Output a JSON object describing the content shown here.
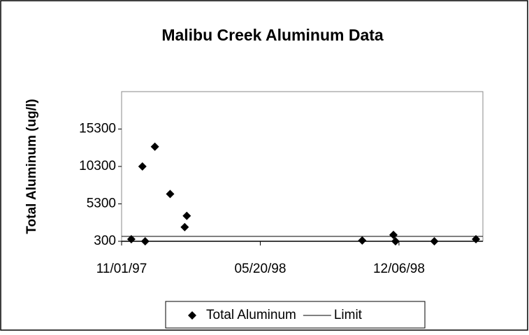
{
  "chart_data": {
    "type": "scatter",
    "title": "Malibu Creek Aluminum Data",
    "y_label": "Total Aluminum (ug/l)",
    "xlim": [
      "11/01/97",
      "04/06/99"
    ],
    "xticks": [
      "11/01/97",
      "05/20/98",
      "12/06/98"
    ],
    "ylim": [
      300,
      20300
    ],
    "yticks": [
      300,
      5300,
      10300,
      15300
    ],
    "series": [
      {
        "name": "Total Aluminum",
        "color": "#000000",
        "marker": "diamond",
        "x": [
          "11/15/97",
          "12/01/97",
          "12/05/97",
          "12/19/97",
          "01/10/98",
          "01/31/98",
          "02/03/98",
          "10/14/98",
          "11/28/98",
          "12/01/98",
          "01/26/99",
          "03/27/99"
        ],
        "values": [
          580,
          10300,
          300,
          12940,
          6620,
          2190,
          3700,
          400,
          1150,
          300,
          300,
          580
        ]
      },
      {
        "name": "Limit",
        "color": "#000000",
        "marker": "line",
        "x": [
          "11/01/97",
          "04/06/99"
        ],
        "values": [
          960,
          960
        ]
      }
    ],
    "legend": "bottom"
  }
}
